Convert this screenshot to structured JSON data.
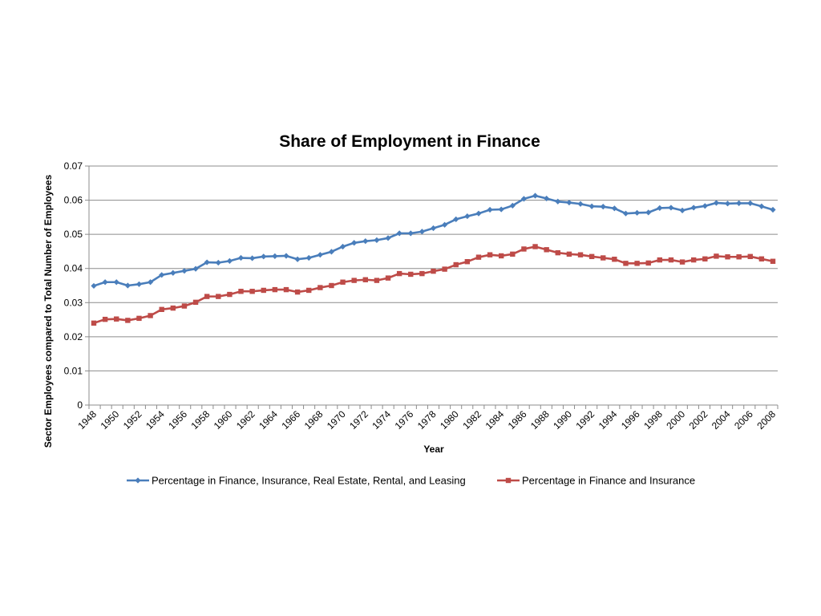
{
  "chart_data": {
    "type": "line",
    "title": "Share of Employment in Finance",
    "xlabel": "Year",
    "ylabel": "Sector Employees compared to Total Number of Employees",
    "ylim": [
      0,
      0.07
    ],
    "yticks": [
      0,
      0.01,
      0.02,
      0.03,
      0.04,
      0.05,
      0.06,
      0.07
    ],
    "ytick_labels": [
      "0",
      "0.01",
      "0.02",
      "0.03",
      "0.04",
      "0.05",
      "0.06",
      "0.07"
    ],
    "x": [
      1948,
      1949,
      1950,
      1951,
      1952,
      1953,
      1954,
      1955,
      1956,
      1957,
      1958,
      1959,
      1960,
      1961,
      1962,
      1963,
      1964,
      1965,
      1966,
      1967,
      1968,
      1969,
      1970,
      1971,
      1972,
      1973,
      1974,
      1975,
      1976,
      1977,
      1978,
      1979,
      1980,
      1981,
      1982,
      1983,
      1984,
      1985,
      1986,
      1987,
      1988,
      1989,
      1990,
      1991,
      1992,
      1993,
      1994,
      1995,
      1996,
      1997,
      1998,
      1999,
      2000,
      2001,
      2002,
      2003,
      2004,
      2005,
      2006,
      2007,
      2008
    ],
    "xtick_labels": [
      "1948",
      "1950",
      "1952",
      "1954",
      "1956",
      "1958",
      "1960",
      "1962",
      "1964",
      "1966",
      "1968",
      "1970",
      "1972",
      "1974",
      "1976",
      "1978",
      "1980",
      "1982",
      "1984",
      "1986",
      "1988",
      "1990",
      "1992",
      "1994",
      "1996",
      "1998",
      "2000",
      "2002",
      "2004",
      "2006",
      "2008"
    ],
    "grid": true,
    "legend_position": "bottom",
    "series": [
      {
        "name": "Percentage in  Finance, Insurance, Real Estate, Rental, and Leasing",
        "color": "#4a7ebb",
        "marker": "diamond",
        "values": [
          0.0349,
          0.036,
          0.036,
          0.035,
          0.0354,
          0.036,
          0.0381,
          0.0387,
          0.0393,
          0.0399,
          0.0418,
          0.0417,
          0.0422,
          0.0431,
          0.043,
          0.0435,
          0.0436,
          0.0437,
          0.0427,
          0.0431,
          0.044,
          0.0449,
          0.0464,
          0.0475,
          0.048,
          0.0483,
          0.0489,
          0.0503,
          0.0503,
          0.0508,
          0.0518,
          0.0528,
          0.0544,
          0.0553,
          0.0561,
          0.0572,
          0.0573,
          0.0584,
          0.0604,
          0.0613,
          0.0605,
          0.0596,
          0.0593,
          0.0589,
          0.0582,
          0.0581,
          0.0576,
          0.0561,
          0.0563,
          0.0564,
          0.0577,
          0.0578,
          0.057,
          0.0578,
          0.0583,
          0.0592,
          0.059,
          0.0591,
          0.0591,
          0.0582,
          0.0572
        ]
      },
      {
        "name": "Percentage in Finance and Insurance",
        "color": "#be4b48",
        "marker": "square",
        "values": [
          0.024,
          0.0251,
          0.0252,
          0.0248,
          0.0254,
          0.0262,
          0.028,
          0.0284,
          0.029,
          0.0301,
          0.0318,
          0.0318,
          0.0324,
          0.0333,
          0.0333,
          0.0336,
          0.0338,
          0.0338,
          0.0331,
          0.0336,
          0.0344,
          0.035,
          0.036,
          0.0365,
          0.0367,
          0.0365,
          0.0372,
          0.0385,
          0.0383,
          0.0385,
          0.0392,
          0.0398,
          0.0411,
          0.042,
          0.0433,
          0.044,
          0.0437,
          0.0442,
          0.0457,
          0.0464,
          0.0455,
          0.0446,
          0.0442,
          0.044,
          0.0435,
          0.0431,
          0.0427,
          0.0415,
          0.0415,
          0.0416,
          0.0425,
          0.0425,
          0.0419,
          0.0425,
          0.0428,
          0.0436,
          0.0434,
          0.0434,
          0.0435,
          0.0428,
          0.0421
        ]
      }
    ]
  }
}
